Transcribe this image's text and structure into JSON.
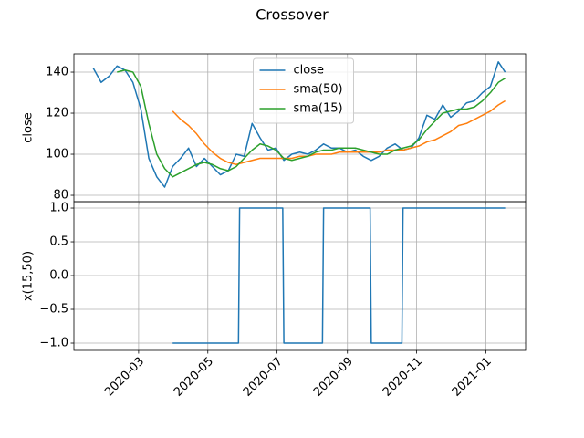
{
  "title": "Crossover",
  "chart_data": [
    {
      "type": "line",
      "ylabel": "close",
      "ylim": [
        76.9,
        148.9
      ],
      "yticks": [
        80,
        100,
        120,
        140
      ],
      "grid": true,
      "legend": "upper center",
      "x": [
        18282,
        18289,
        18296,
        18303,
        18310,
        18317,
        18324,
        18331,
        18338,
        18345,
        18352,
        18359,
        18366,
        18373,
        18380,
        18387,
        18394,
        18401,
        18408,
        18415,
        18422,
        18429,
        18436,
        18443,
        18450,
        18457,
        18464,
        18471,
        18478,
        18485,
        18492,
        18499,
        18506,
        18513,
        18520,
        18527,
        18534,
        18541,
        18548,
        18555,
        18562,
        18569,
        18576,
        18583,
        18590,
        18597,
        18604,
        18611,
        18618,
        18625,
        18632,
        18639,
        18645
      ],
      "series": [
        {
          "name": "close",
          "color": "#1f77b4",
          "values": [
            142,
            135,
            138,
            143,
            141,
            135,
            122,
            98,
            89,
            84,
            94,
            98,
            103,
            94,
            98,
            94,
            90,
            92,
            100,
            99,
            115,
            108,
            102,
            103,
            97,
            100,
            101,
            100,
            102,
            105,
            103,
            103,
            101,
            102,
            99,
            97,
            99,
            103,
            105,
            102,
            103,
            108,
            119,
            117,
            124,
            118,
            121,
            125,
            126,
            130,
            133,
            145,
            140
          ]
        },
        {
          "name": "sma(50)",
          "color": "#ff7f0e",
          "values": [
            null,
            null,
            null,
            null,
            null,
            null,
            null,
            null,
            null,
            null,
            121,
            117,
            114,
            110,
            105,
            101,
            98,
            96,
            95,
            96,
            97,
            98,
            98,
            98,
            98,
            98,
            99,
            99,
            100,
            100,
            100,
            101,
            101,
            101,
            101,
            101,
            101,
            102,
            102,
            102,
            103,
            104,
            106,
            107,
            109,
            111,
            114,
            115,
            117,
            119,
            121,
            124,
            126
          ]
        },
        {
          "name": "sma(15)",
          "color": "#2ca02c",
          "values": [
            null,
            null,
            null,
            140,
            141,
            140,
            133,
            115,
            100,
            93,
            89,
            91,
            93,
            95,
            96,
            95,
            93,
            92,
            94,
            98,
            102,
            105,
            104,
            102,
            98,
            97,
            98,
            99,
            101,
            102,
            102,
            103,
            103,
            103,
            102,
            101,
            100,
            100,
            102,
            103,
            104,
            107,
            112,
            116,
            120,
            121,
            122,
            122,
            123,
            126,
            130,
            135,
            137
          ]
        }
      ]
    },
    {
      "type": "line",
      "ylabel": "x(15,50)",
      "ylim": [
        -1.108,
        1.095
      ],
      "grid": true,
      "yticks": [
        {
          "value": -1,
          "label": "−1.0"
        },
        {
          "value": -0.5,
          "label": "−0.5"
        },
        {
          "value": 0,
          "label": "0.0"
        },
        {
          "value": 0.5,
          "label": "0.5"
        },
        {
          "value": 1,
          "label": "1.0"
        }
      ],
      "xlim": [
        18265,
        18663
      ],
      "xticks": [
        {
          "value": 18322,
          "label": "2020-03"
        },
        {
          "value": 18383,
          "label": "2020-05"
        },
        {
          "value": 18444,
          "label": "2020-07"
        },
        {
          "value": 18506,
          "label": "2020-09"
        },
        {
          "value": 18567,
          "label": "2020-11"
        },
        {
          "value": 18628,
          "label": "2021-01"
        }
      ],
      "x": [
        18352,
        18410,
        18411,
        18449,
        18450,
        18484,
        18485,
        18526,
        18527,
        18554,
        18555,
        18645
      ],
      "series": [
        {
          "color": "#1f77b4",
          "values": [
            -1,
            -1,
            1,
            1,
            -1,
            -1,
            1,
            1,
            -1,
            -1,
            1,
            1
          ]
        }
      ]
    }
  ]
}
